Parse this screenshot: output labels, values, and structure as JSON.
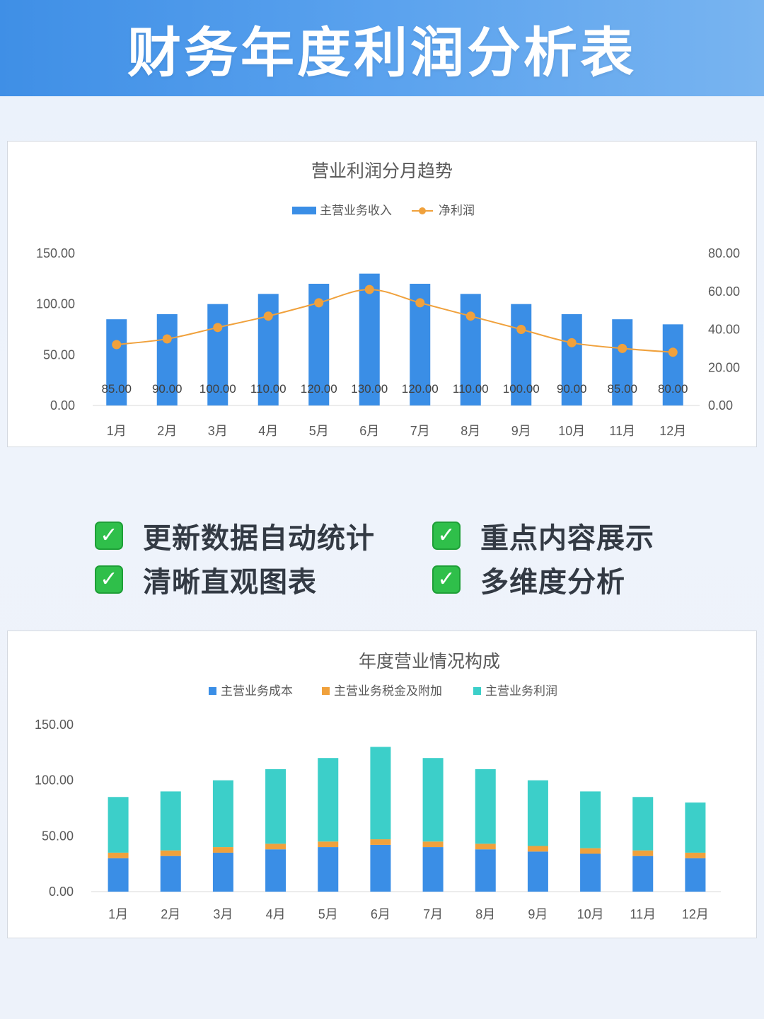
{
  "page": {
    "title": "财务年度利润分析表"
  },
  "features": [
    {
      "label": "更新数据自动统计",
      "icon": "check-icon"
    },
    {
      "label": "重点内容展示",
      "icon": "check-icon"
    },
    {
      "label": "清晰直观图表",
      "icon": "check-icon"
    },
    {
      "label": "多维度分析",
      "icon": "check-icon"
    }
  ],
  "check_glyph": "✓",
  "colors": {
    "bar_blue": "#3a8ee6",
    "line_orange": "#f0a13c",
    "segment_cost": "#3a8ee6",
    "segment_tax": "#f0a13c",
    "segment_profit": "#3ccfc9",
    "banner_start": "#3f8fe6",
    "banner_end": "#78b4f0",
    "check_green": "#2fbf4a"
  },
  "chart_data": [
    {
      "type": "bar",
      "combo": "bar+line (dual axis)",
      "title": "营业利润分月趋势",
      "categories": [
        "1月",
        "2月",
        "3月",
        "4月",
        "5月",
        "6月",
        "7月",
        "8月",
        "9月",
        "10月",
        "11月",
        "12月"
      ],
      "series": [
        {
          "name": "主营业务收入",
          "type": "bar",
          "axis": "left",
          "values": [
            85,
            90,
            100,
            110,
            120,
            130,
            120,
            110,
            100,
            90,
            85,
            80
          ],
          "labels": [
            "85.00",
            "90.00",
            "100.00",
            "110.00",
            "120.00",
            "130.00",
            "120.00",
            "110.00",
            "100.00",
            "90.00",
            "85.00",
            "80.00"
          ]
        },
        {
          "name": "净利润",
          "type": "line",
          "axis": "right",
          "values": [
            32,
            35,
            41,
            47,
            54,
            61,
            54,
            47,
            40,
            33,
            30,
            28
          ]
        }
      ],
      "ylim_left": [
        0,
        150
      ],
      "yticks_left": [
        "0.00",
        "50.00",
        "100.00",
        "150.00"
      ],
      "ylim_right": [
        0,
        80
      ],
      "yticks_right": [
        "0.00",
        "20.00",
        "40.00",
        "60.00",
        "80.00"
      ],
      "legend": "top-center",
      "grid": false
    },
    {
      "type": "bar",
      "stacked": true,
      "title": "年度营业情况构成",
      "categories": [
        "1月",
        "2月",
        "3月",
        "4月",
        "5月",
        "6月",
        "7月",
        "8月",
        "9月",
        "10月",
        "11月",
        "12月"
      ],
      "series": [
        {
          "name": "主营业务成本",
          "values": [
            30,
            32,
            35,
            38,
            40,
            42,
            40,
            38,
            36,
            34,
            32,
            30
          ]
        },
        {
          "name": "主营业务税金及附加",
          "values": [
            5,
            5,
            5,
            5,
            5,
            5,
            5,
            5,
            5,
            5,
            5,
            5
          ]
        },
        {
          "name": "主营业务利润",
          "values": [
            50,
            53,
            60,
            67,
            75,
            83,
            75,
            67,
            59,
            51,
            48,
            45
          ]
        }
      ],
      "ylim": [
        0,
        150
      ],
      "yticks": [
        "0.00",
        "50.00",
        "100.00",
        "150.00"
      ],
      "legend": "top-center",
      "grid": false
    }
  ]
}
